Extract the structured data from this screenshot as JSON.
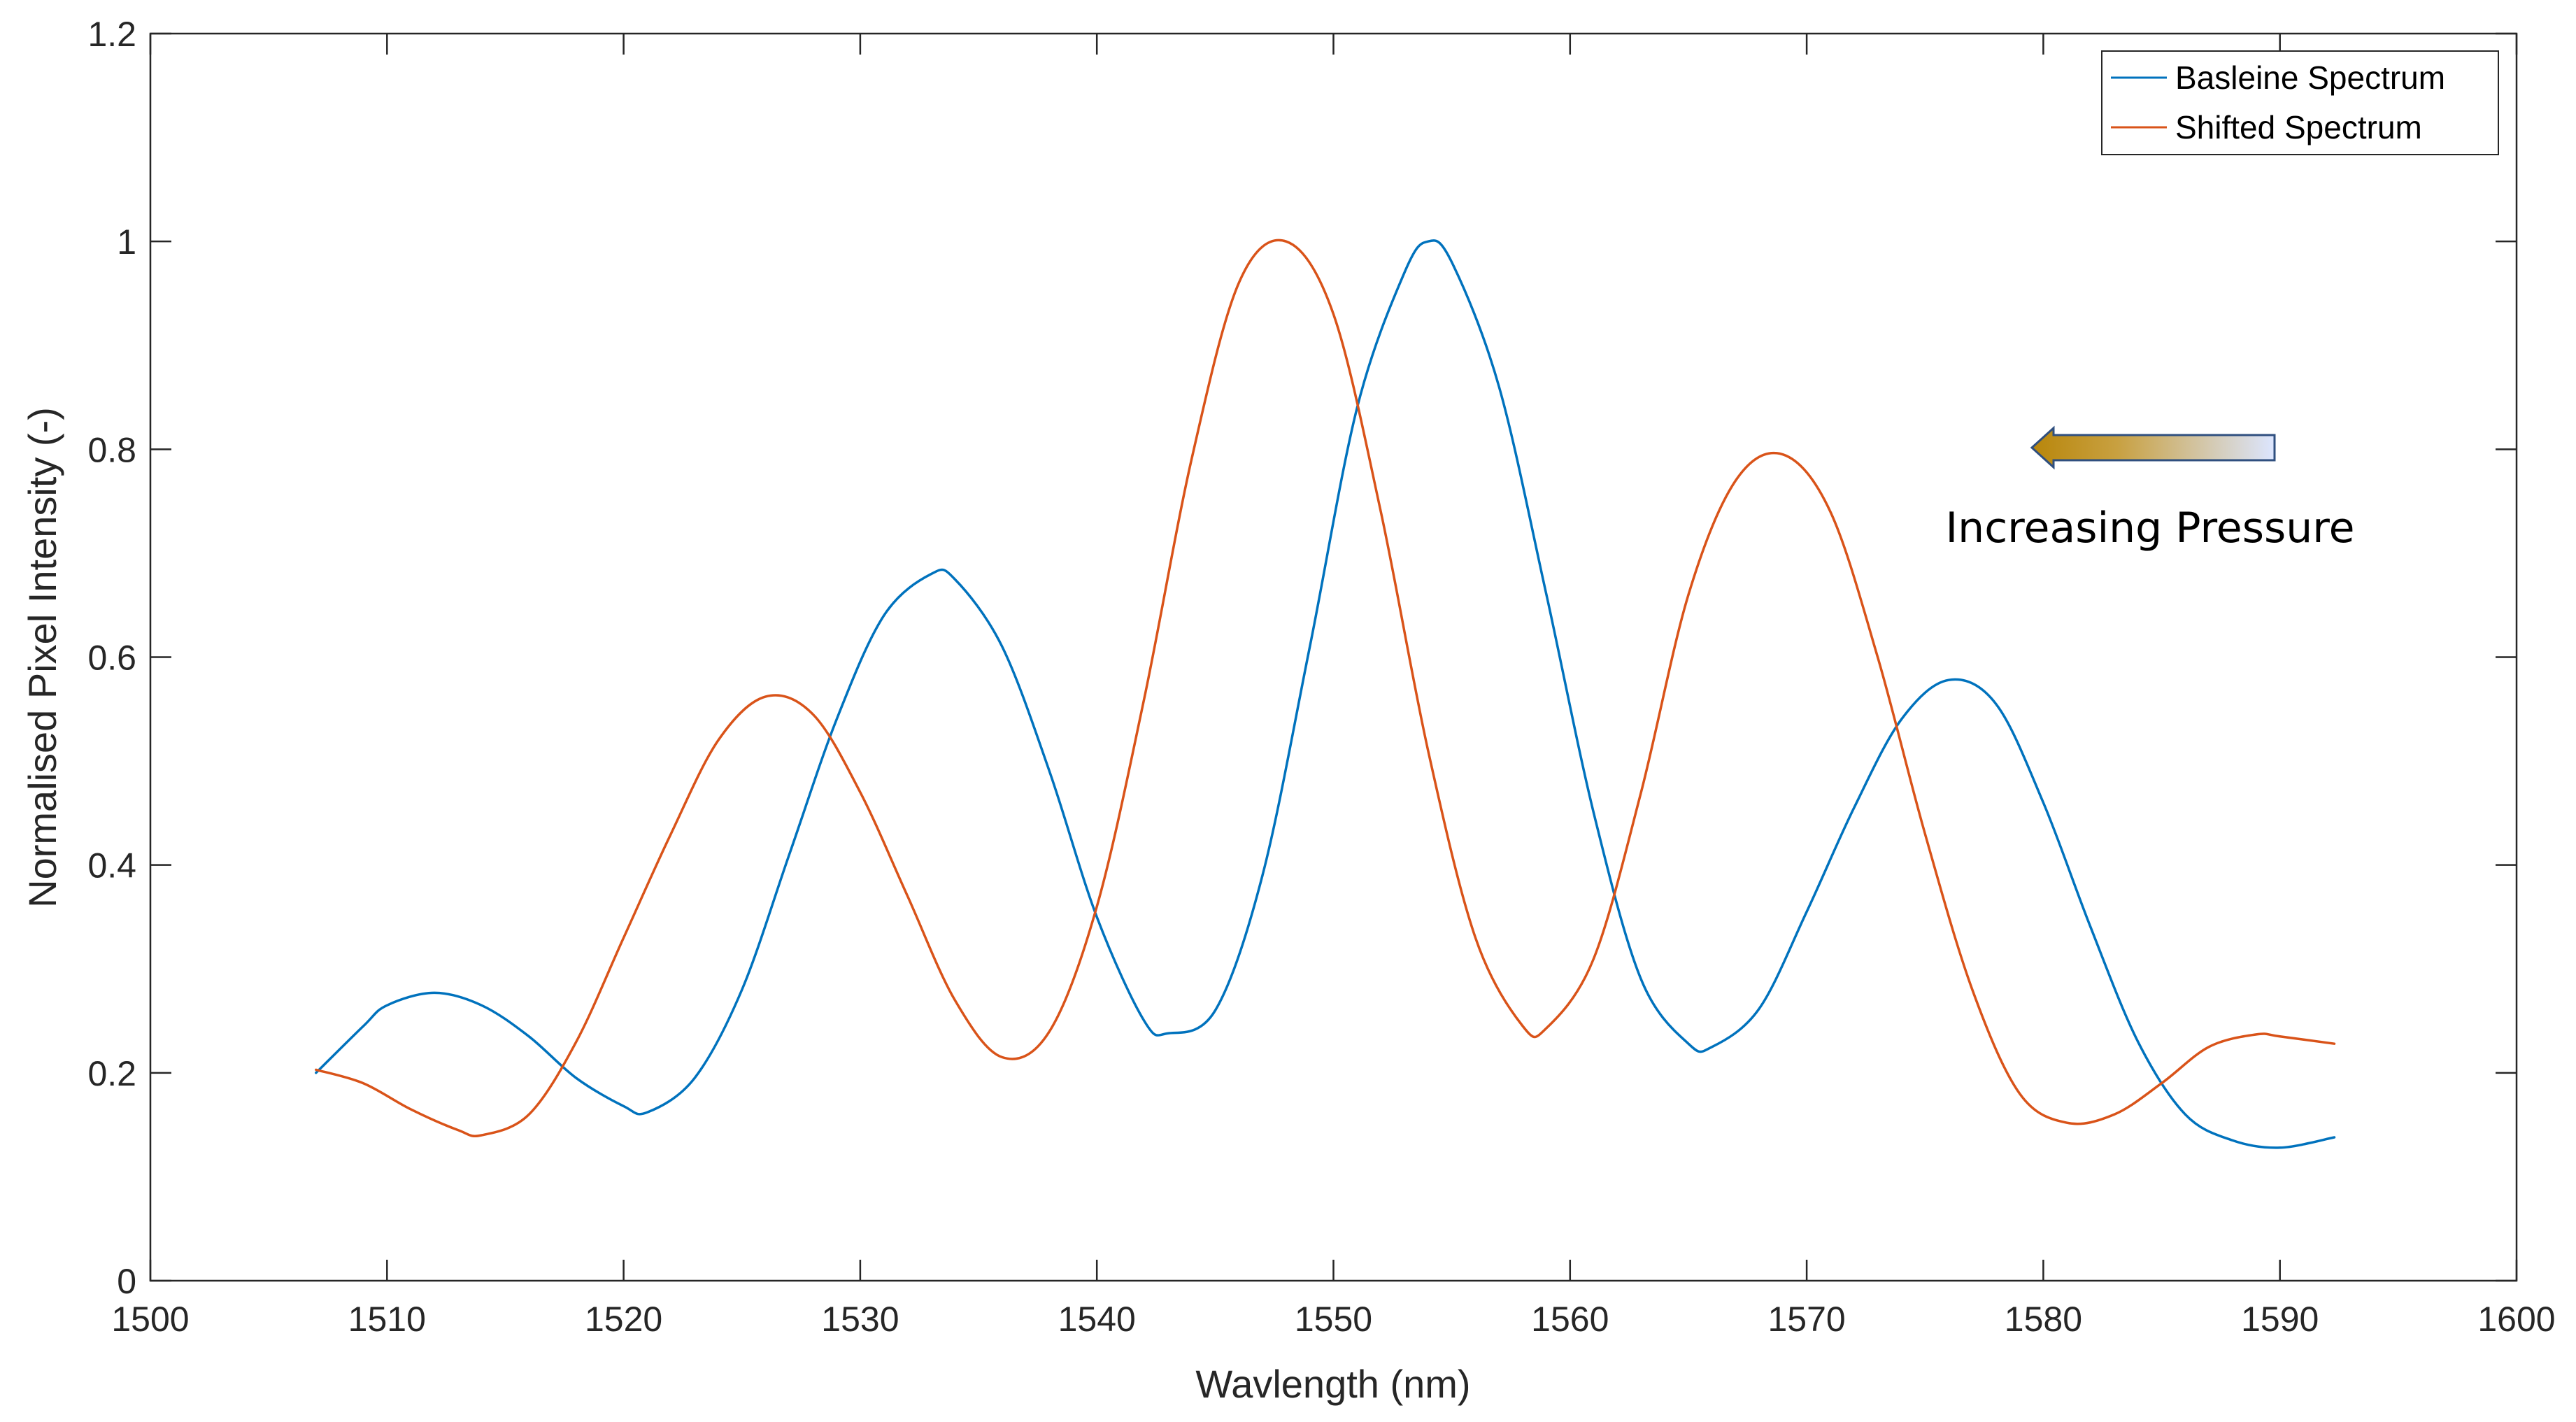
{
  "chart_data": {
    "type": "line",
    "xlabel": "Wavlength (nm)",
    "ylabel": "Normalised Pixel Intensity (-)",
    "xlim": [
      1500,
      1600
    ],
    "ylim": [
      0,
      1.2
    ],
    "xticks": [
      "1500",
      "1510",
      "1520",
      "1530",
      "1540",
      "1550",
      "1560",
      "1570",
      "1580",
      "1590",
      "1600"
    ],
    "yticks": [
      "0",
      "0.2",
      "0.4",
      "0.6",
      "0.8",
      "1",
      "1.2"
    ],
    "grid": false,
    "legend_position": "top-right",
    "annotation": {
      "text": "Increasing Pressure",
      "arrow_direction": "left"
    },
    "series": [
      {
        "name": "Basleine Spectrum",
        "color": "#0072BD",
        "x": [
          1507,
          1509,
          1510,
          1512,
          1514,
          1516,
          1518,
          1520,
          1521,
          1523,
          1525,
          1527,
          1529,
          1531,
          1533,
          1534,
          1536,
          1538,
          1540,
          1542,
          1543,
          1545,
          1547,
          1549,
          1551,
          1553,
          1554,
          1555,
          1557,
          1559,
          1561,
          1563,
          1565,
          1566,
          1568,
          1570,
          1572,
          1574,
          1576,
          1578,
          1580,
          1582,
          1584,
          1586,
          1588,
          1590,
          1592.3
        ],
        "values": [
          0.2,
          0.245,
          0.265,
          0.277,
          0.265,
          0.235,
          0.195,
          0.168,
          0.162,
          0.195,
          0.28,
          0.41,
          0.54,
          0.64,
          0.68,
          0.675,
          0.61,
          0.49,
          0.35,
          0.25,
          0.238,
          0.26,
          0.39,
          0.61,
          0.84,
          0.97,
          1.0,
          0.98,
          0.86,
          0.66,
          0.45,
          0.29,
          0.228,
          0.225,
          0.262,
          0.355,
          0.455,
          0.54,
          0.578,
          0.555,
          0.46,
          0.34,
          0.23,
          0.16,
          0.135,
          0.128,
          0.138
        ]
      },
      {
        "name": "Shifted Spectrum",
        "color": "#D95319",
        "x": [
          1507,
          1509,
          1511,
          1513,
          1514,
          1516,
          1518,
          1520,
          1522,
          1524,
          1526,
          1528,
          1530,
          1532,
          1534,
          1536,
          1538,
          1540,
          1542,
          1544,
          1546,
          1548,
          1550,
          1552,
          1554,
          1556,
          1558,
          1559,
          1561,
          1563,
          1565,
          1567,
          1569,
          1571,
          1573,
          1575,
          1577,
          1579,
          1581,
          1583,
          1585,
          1587,
          1589,
          1590,
          1592.3
        ],
        "values": [
          0.203,
          0.19,
          0.165,
          0.145,
          0.14,
          0.16,
          0.23,
          0.33,
          0.43,
          0.52,
          0.562,
          0.545,
          0.47,
          0.37,
          0.27,
          0.215,
          0.24,
          0.36,
          0.56,
          0.79,
          0.96,
          1.0,
          0.93,
          0.74,
          0.51,
          0.33,
          0.245,
          0.243,
          0.31,
          0.47,
          0.66,
          0.77,
          0.795,
          0.74,
          0.6,
          0.43,
          0.28,
          0.18,
          0.152,
          0.16,
          0.19,
          0.225,
          0.237,
          0.235,
          0.228
        ]
      }
    ]
  }
}
